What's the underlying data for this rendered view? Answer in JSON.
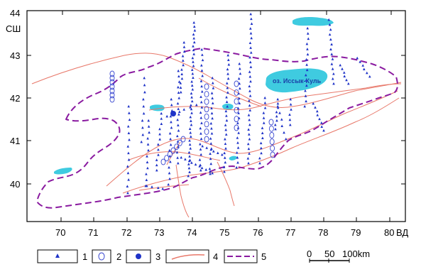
{
  "axes": {
    "y_ticks": [
      "44",
      "43",
      "42",
      "41",
      "40"
    ],
    "y_unit": "СШ",
    "x_ticks": [
      "70",
      "71",
      "72",
      "73",
      "74",
      "75",
      "76",
      "77",
      "78",
      "79",
      "80"
    ],
    "x_unit": "ВД"
  },
  "lake_label": "оз. Иссык-Куль",
  "legend": {
    "items": [
      {
        "number": "1",
        "symbol": "triangle-icon"
      },
      {
        "number": "2",
        "symbol": "open-circle-icon"
      },
      {
        "number": "3",
        "symbol": "filled-circle-icon"
      },
      {
        "number": "4",
        "symbol": "solid-orange-line-icon"
      },
      {
        "number": "5",
        "symbol": "dashed-purple-line-icon"
      }
    ]
  },
  "scale_bar": {
    "labels": [
      "0",
      "50",
      "100km"
    ]
  },
  "colors": {
    "triangle": "#1f33c8",
    "circle": "#3a48d0",
    "fault": "#e8786a",
    "border": "#8a1aa0",
    "lake": "#3fcbe0"
  }
}
